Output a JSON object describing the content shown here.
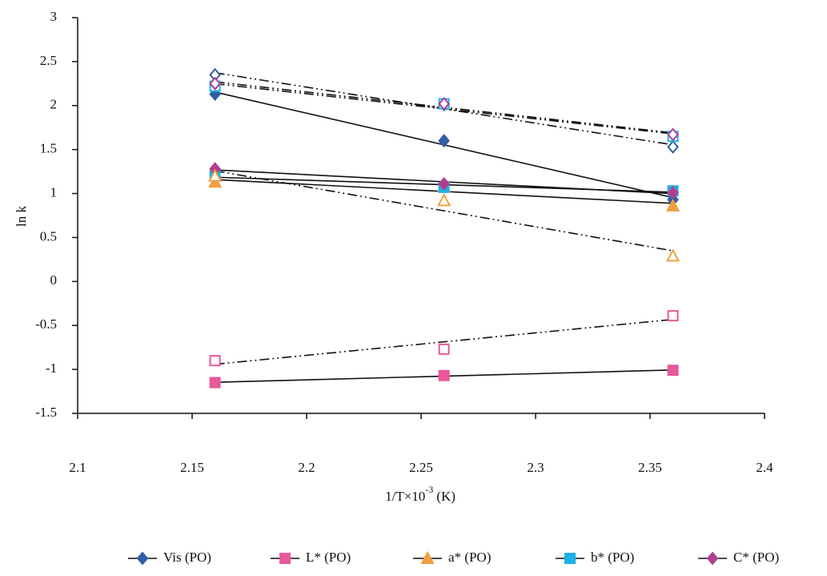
{
  "chart_data": {
    "type": "scatter",
    "ylabel": "ln k",
    "xlabel": [
      "1/T×10",
      "-3",
      "(K)"
    ],
    "x": [
      2.16,
      2.26,
      2.36
    ],
    "xlim": [
      2.1,
      2.4
    ],
    "xticks": [
      2.1,
      2.15,
      2.2,
      2.25,
      2.3,
      2.35,
      2.4
    ],
    "ylim": [
      -1.5,
      3
    ],
    "yticks": [
      -1.5,
      -1,
      -0.5,
      0,
      0.5,
      1,
      1.5,
      2,
      2.5,
      3
    ],
    "grid": false,
    "legend": "bottom",
    "trendline": "linear",
    "series": [
      {
        "name": "Vis (PO)",
        "color": "#2f5ea6",
        "marker": "diamond",
        "filled": true,
        "line": "solid",
        "values": [
          2.13,
          1.6,
          0.93
        ]
      },
      {
        "name": "L* (PO)",
        "color": "#e8589a",
        "marker": "square",
        "filled": true,
        "line": "solid",
        "values": [
          -1.15,
          -1.07,
          -1.01
        ]
      },
      {
        "name": "a* (PO)",
        "color": "#f0a040",
        "marker": "triangle",
        "filled": true,
        "line": "solid",
        "values": [
          1.13,
          1.08,
          0.86
        ]
      },
      {
        "name": "b* (PO)",
        "color": "#1cb0e8",
        "marker": "square",
        "filled": true,
        "line": "solid",
        "values": [
          1.2,
          1.07,
          1.03
        ]
      },
      {
        "name": "C* (PO)",
        "color": "#b0408f",
        "marker": "diamond",
        "filled": true,
        "line": "solid",
        "values": [
          1.28,
          1.11,
          1.01
        ]
      },
      {
        "color": "#2f5ea6",
        "marker": "diamond",
        "filled": false,
        "line": "dashdot",
        "values": [
          2.35,
          2.01,
          1.53
        ]
      },
      {
        "color": "#e8589a",
        "marker": "square",
        "filled": false,
        "line": "dashdot",
        "values": [
          -0.9,
          -0.77,
          -0.39
        ]
      },
      {
        "color": "#f0a040",
        "marker": "triangle",
        "filled": false,
        "line": "dashdot",
        "values": [
          1.2,
          0.92,
          0.29
        ]
      },
      {
        "color": "#1cb0e8",
        "marker": "square",
        "filled": false,
        "line": "dashdot",
        "values": [
          2.22,
          2.02,
          1.65
        ]
      },
      {
        "color": "#b0408f",
        "marker": "diamond",
        "filled": false,
        "line": "dashdot",
        "values": [
          2.25,
          2.02,
          1.67
        ]
      }
    ]
  }
}
